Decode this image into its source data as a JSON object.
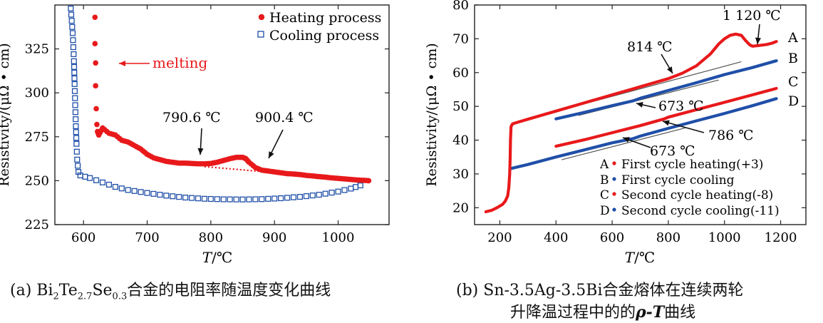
{
  "captions": {
    "a": {
      "prefix": "(a) Bi",
      "sub1": "2",
      "mid1": "Te",
      "sub2": "2.7",
      "mid2": "Se",
      "sub3": "0.3",
      "suffix": "合金的电阻率随温度变化曲线"
    },
    "b_line1": "(b) Sn-3.5Ag-3.5Bi合金熔体在连续两轮",
    "b_line2_prefix": "升降温过程中的的",
    "b_line2_italic": "ρ-T",
    "b_line2_suffix": "曲线"
  },
  "chart_data": [
    {
      "id": "a",
      "type": "scatter",
      "xlabel_italic": "T",
      "xlabel_unit": "/℃",
      "ylabel": "Resistivity/(μΩ • cm)",
      "xlim": [
        555,
        1080
      ],
      "ylim": [
        225,
        350
      ],
      "xticks": [
        600,
        700,
        800,
        900,
        1000
      ],
      "yticks": [
        225,
        250,
        275,
        300,
        325
      ],
      "legend_position": "top-right",
      "series": [
        {
          "name": "Heating process",
          "color": "#e8191b",
          "marker": "circle",
          "points": [
            [
              618,
              343
            ],
            [
              618,
              328
            ],
            [
              619,
              317
            ],
            [
              619,
              304
            ],
            [
              620,
              291
            ],
            [
              621,
              282
            ],
            [
              622,
              278
            ],
            [
              624,
              276
            ],
            [
              630,
              280
            ],
            [
              640,
              277
            ],
            [
              650,
              276
            ],
            [
              660,
              273
            ],
            [
              670,
              272
            ],
            [
              680,
              270
            ],
            [
              690,
              268
            ],
            [
              700,
              265
            ],
            [
              710,
              263
            ],
            [
              720,
              262
            ],
            [
              730,
              261
            ],
            [
              740,
              260.5
            ],
            [
              750,
              260
            ],
            [
              760,
              260
            ],
            [
              770,
              259.8
            ],
            [
              780,
              259.6
            ],
            [
              790,
              259.6
            ],
            [
              800,
              259.8
            ],
            [
              810,
              260.5
            ],
            [
              820,
              261.5
            ],
            [
              830,
              262.5
            ],
            [
              840,
              263.3
            ],
            [
              850,
              263.3
            ],
            [
              855,
              262.5
            ],
            [
              860,
              260.5
            ],
            [
              870,
              257.5
            ],
            [
              880,
              256
            ],
            [
              890,
              255.5
            ],
            [
              900,
              255
            ],
            [
              910,
              254.5
            ],
            [
              920,
              254
            ],
            [
              930,
              253.8
            ],
            [
              940,
              253.5
            ],
            [
              950,
              253
            ],
            [
              960,
              252.7
            ],
            [
              970,
              252.3
            ],
            [
              980,
              252
            ],
            [
              990,
              251.6
            ],
            [
              1000,
              251.3
            ],
            [
              1010,
              251
            ],
            [
              1020,
              250.7
            ],
            [
              1030,
              250.4
            ],
            [
              1040,
              250.2
            ],
            [
              1048,
              250
            ]
          ]
        },
        {
          "name": "Cooling process",
          "color": "#1f4fa8",
          "marker": "square",
          "points": [
            [
              580,
              348
            ],
            [
              583,
              334
            ],
            [
              585,
              318
            ],
            [
              586,
              305
            ],
            [
              587,
              293
            ],
            [
              588,
              281
            ],
            [
              589,
              271
            ],
            [
              590,
              262
            ],
            [
              592,
              255
            ],
            [
              595,
              253
            ],
            [
              610,
              251.5
            ],
            [
              630,
              249
            ],
            [
              650,
              246.5
            ],
            [
              670,
              244.7
            ],
            [
              700,
              243
            ],
            [
              730,
              241.5
            ],
            [
              760,
              240.4
            ],
            [
              790,
              239.7
            ],
            [
              820,
              239.4
            ],
            [
              850,
              239.3
            ],
            [
              880,
              239.5
            ],
            [
              910,
              240
            ],
            [
              940,
              240.8
            ],
            [
              970,
              242
            ],
            [
              1000,
              243.8
            ],
            [
              1020,
              245.5
            ],
            [
              1035,
              247.3
            ],
            [
              1048,
              249.5
            ]
          ]
        },
        {
          "name": "baseline",
          "color": "#e8191b",
          "marker": "dotted-line",
          "points": [
            [
              790,
              258
            ],
            [
              1048,
              250
            ]
          ]
        }
      ],
      "annotations": [
        {
          "text": "melting",
          "color": "#e8191b",
          "x": 640,
          "y": 318
        },
        {
          "text": "790.6 ℃",
          "x": 790.6,
          "y": 259.6
        },
        {
          "text": "900.4 ℃",
          "x": 900.4,
          "y": 255
        }
      ]
    },
    {
      "id": "b",
      "type": "scatter",
      "xlabel_italic": "T",
      "xlabel_unit": "/℃",
      "ylabel": "Resistivity/(μΩ • cm)",
      "xlim": [
        110,
        1290
      ],
      "ylim": [
        15,
        80
      ],
      "xticks": [
        200,
        400,
        600,
        800,
        1000,
        1200
      ],
      "yticks": [
        20,
        30,
        40,
        50,
        60,
        70,
        80
      ],
      "legend_position": "bottom-right",
      "series": [
        {
          "name": "First cycle heating(+3)",
          "letter": "A",
          "color": "#e8191b",
          "marker": "dot-line",
          "points": [
            [
              150,
              18.8
            ],
            [
              170,
              19.2
            ],
            [
              190,
              20
            ],
            [
              210,
              21
            ],
            [
              220,
              22
            ],
            [
              228,
              23.5
            ],
            [
              232,
              26
            ],
            [
              235,
              30
            ],
            [
              237,
              35
            ],
            [
              238,
              40
            ],
            [
              240,
              44
            ],
            [
              245,
              44.8
            ],
            [
              260,
              45.2
            ],
            [
              300,
              46.2
            ],
            [
              400,
              48.6
            ],
            [
              500,
              51
            ],
            [
              600,
              53.4
            ],
            [
              700,
              55.8
            ],
            [
              800,
              58.2
            ],
            [
              850,
              59.8
            ],
            [
              900,
              62
            ],
            [
              950,
              65.5
            ],
            [
              980,
              68.5
            ],
            [
              1000,
              70
            ],
            [
              1020,
              71
            ],
            [
              1040,
              71.4
            ],
            [
              1060,
              71
            ],
            [
              1075,
              69.5
            ],
            [
              1090,
              68.2
            ],
            [
              1100,
              67.8
            ],
            [
              1120,
              68
            ],
            [
              1150,
              68.3
            ],
            [
              1170,
              68.7
            ],
            [
              1185,
              69.2
            ]
          ]
        },
        {
          "name": "First cycle cooling",
          "letter": "B",
          "color": "#1f4fa8",
          "marker": "dot-line",
          "points": [
            [
              400,
              46.3
            ],
            [
              500,
              48.2
            ],
            [
              600,
              50.2
            ],
            [
              673,
              51.6
            ],
            [
              700,
              52.4
            ],
            [
              800,
              54.7
            ],
            [
              900,
              57
            ],
            [
              1000,
              59.4
            ],
            [
              1100,
              61.5
            ],
            [
              1185,
              63.5
            ]
          ]
        },
        {
          "name": "Second cycle heating(-8)",
          "letter": "C",
          "color": "#e8191b",
          "marker": "dot-line",
          "points": [
            [
              400,
              38.2
            ],
            [
              500,
              40.1
            ],
            [
              600,
              42.2
            ],
            [
              700,
              44.3
            ],
            [
              786,
              46.3
            ],
            [
              800,
              46.8
            ],
            [
              900,
              49
            ],
            [
              1000,
              51.2
            ],
            [
              1100,
              53.4
            ],
            [
              1185,
              55.3
            ]
          ]
        },
        {
          "name": "Second cycle cooling(-11)",
          "letter": "D",
          "color": "#1f4fa8",
          "marker": "dot-line",
          "points": [
            [
              240,
              31.6
            ],
            [
              300,
              32.8
            ],
            [
              400,
              35
            ],
            [
              500,
              37.1
            ],
            [
              600,
              39.2
            ],
            [
              673,
              40.4
            ],
            [
              700,
              41.2
            ],
            [
              800,
              43.5
            ],
            [
              900,
              45.7
            ],
            [
              1000,
              47.9
            ],
            [
              1100,
              50.2
            ],
            [
              1185,
              52.3
            ]
          ]
        }
      ],
      "reference_lines": [
        {
          "color": "#555555",
          "points": [
            [
              260,
              45.4
            ],
            [
              1060,
              63.2
            ]
          ]
        },
        {
          "color": "#555555",
          "points": [
            [
              480,
              47.3
            ],
            [
              980,
              57.8
            ]
          ]
        },
        {
          "color": "#555555",
          "points": [
            [
              620,
              42.6
            ],
            [
              1000,
              51.2
            ]
          ]
        },
        {
          "color": "#555555",
          "points": [
            [
              420,
              34.2
            ],
            [
              860,
              43.6
            ]
          ]
        }
      ],
      "annotations": [
        {
          "text": "1 120 ℃",
          "x": 1120,
          "y": 67.8
        },
        {
          "text": "814 ℃",
          "x": 814,
          "y": 58.7
        },
        {
          "text": "673 ℃",
          "x": 673,
          "y": 51.6
        },
        {
          "text": "786 ℃",
          "x": 786,
          "y": 46.3
        },
        {
          "text": "673 ℃",
          "x": 673,
          "y": 40.4
        }
      ],
      "curve_letters": [
        "A",
        "B",
        "C",
        "D"
      ]
    }
  ]
}
